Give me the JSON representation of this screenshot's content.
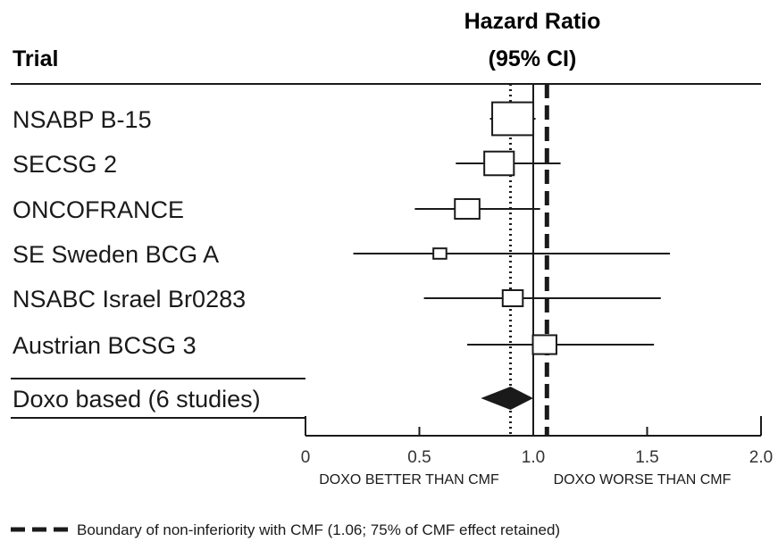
{
  "chart_data": {
    "type": "forest",
    "header": {
      "trial": "Trial",
      "hazard_ratio_line1": "Hazard Ratio",
      "hazard_ratio_line2": "(95% CI)"
    },
    "xlim": [
      0,
      2.0
    ],
    "ticks": [
      {
        "value": 0,
        "label": "0"
      },
      {
        "value": 0.5,
        "label": "0.5"
      },
      {
        "value": 1.0,
        "label": "1.0"
      },
      {
        "value": 1.5,
        "label": "1.5"
      },
      {
        "value": 2.0,
        "label": "2.0"
      }
    ],
    "direction_labels": {
      "left": "DOXO BETTER THAN CMF",
      "right": "DOXO WORSE THAN CMF"
    },
    "studies": [
      {
        "name": "NSABP B-15",
        "hr": 0.91,
        "lower": 0.81,
        "upper": 1.01,
        "weight": 1.0
      },
      {
        "name": "SECSG 2",
        "hr": 0.85,
        "lower": 0.66,
        "upper": 1.12,
        "weight": 0.52
      },
      {
        "name": "ONCOFRANCE",
        "hr": 0.71,
        "lower": 0.48,
        "upper": 1.03,
        "weight": 0.36
      },
      {
        "name": "SE Sweden BCG A",
        "hr": 0.59,
        "lower": 0.21,
        "upper": 1.6,
        "weight": 0.1
      },
      {
        "name": "NSABC Israel Br0283",
        "hr": 0.91,
        "lower": 0.52,
        "upper": 1.56,
        "weight": 0.24
      },
      {
        "name": "Austrian BCSG 3",
        "hr": 1.05,
        "lower": 0.71,
        "upper": 1.53,
        "weight": 0.33
      }
    ],
    "pooled": {
      "name": "Doxo based (6 studies)",
      "hr": 0.9,
      "lower": 0.77,
      "upper": 1.0
    },
    "reference_line": 1.0,
    "pooled_line": 0.9,
    "noninferiority_boundary": 1.06,
    "legend": {
      "text": "Boundary of non-inferiority with CMF (1.06; 75% of CMF effect retained)"
    }
  }
}
